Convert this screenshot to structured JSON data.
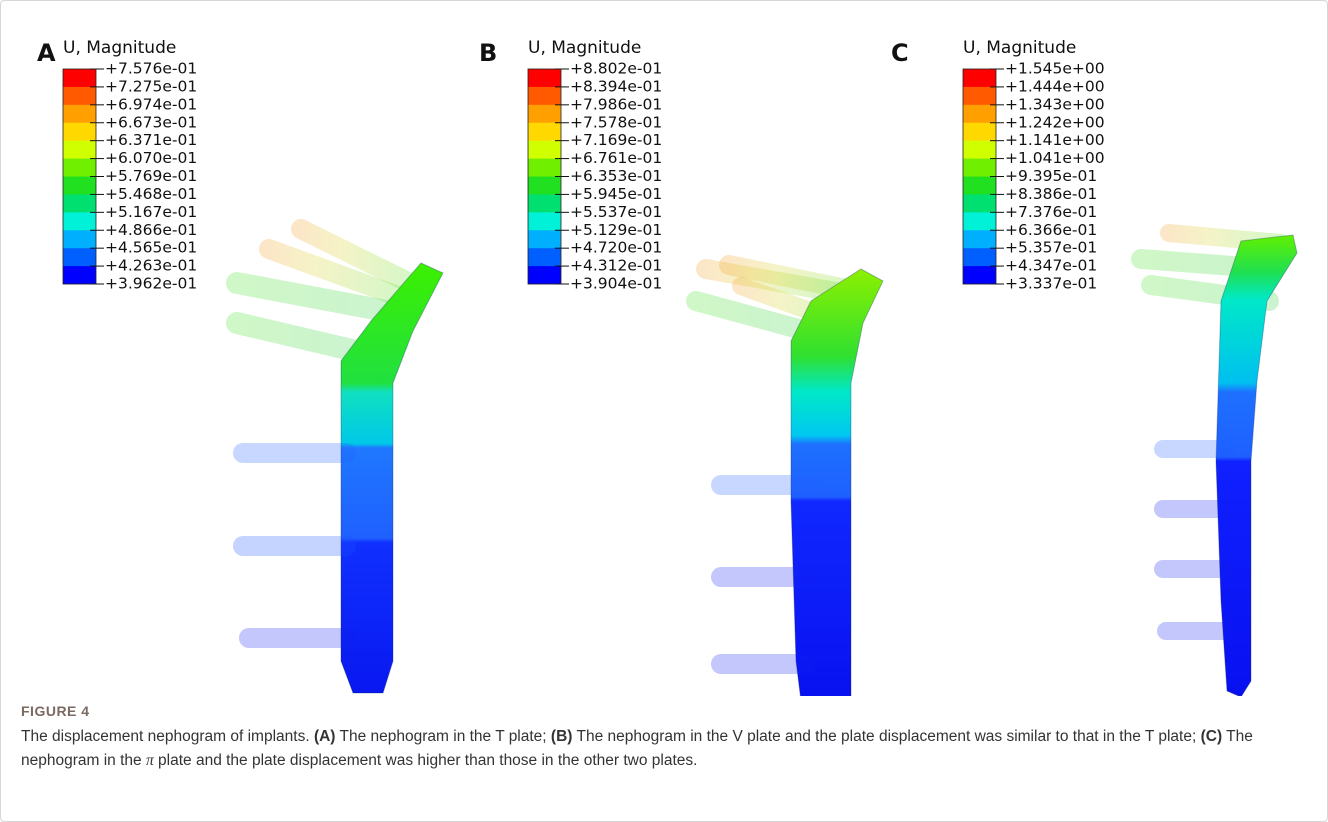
{
  "figure_label": "FIGURE 4",
  "panels": [
    {
      "label": "A",
      "legend_title": "U, Magnitude",
      "legend_ticks": [
        "+7.576e-01",
        "+7.275e-01",
        "+6.974e-01",
        "+6.673e-01",
        "+6.371e-01",
        "+6.070e-01",
        "+5.769e-01",
        "+5.468e-01",
        "+5.167e-01",
        "+4.866e-01",
        "+4.565e-01",
        "+4.263e-01",
        "+3.962e-01"
      ]
    },
    {
      "label": "B",
      "legend_title": "U, Magnitude",
      "legend_ticks": [
        "+8.802e-01",
        "+8.394e-01",
        "+7.986e-01",
        "+7.578e-01",
        "+7.169e-01",
        "+6.761e-01",
        "+6.353e-01",
        "+5.945e-01",
        "+5.537e-01",
        "+5.129e-01",
        "+4.720e-01",
        "+4.312e-01",
        "+3.904e-01"
      ]
    },
    {
      "label": "C",
      "legend_title": "U, Magnitude",
      "legend_ticks": [
        "+1.545e+00",
        "+1.444e+00",
        "+1.343e+00",
        "+1.242e+00",
        "+1.141e+00",
        "+1.041e+00",
        "+9.395e-01",
        "+8.386e-01",
        "+7.376e-01",
        "+6.366e-01",
        "+5.357e-01",
        "+4.347e-01",
        "+3.337e-01"
      ]
    }
  ],
  "caption": {
    "intro": "The displacement nephogram of implants.",
    "items": [
      {
        "label": "(A)",
        "text": "The nephogram in the T plate;"
      },
      {
        "label": "(B)",
        "text": "The nephogram in the V plate and the plate displacement was similar to that in the T plate;"
      },
      {
        "label": "(C)",
        "text": "The nephogram in the",
        "symbol": "π",
        "text_after": "plate and the plate displacement was higher than those in the other two plates."
      }
    ]
  }
}
